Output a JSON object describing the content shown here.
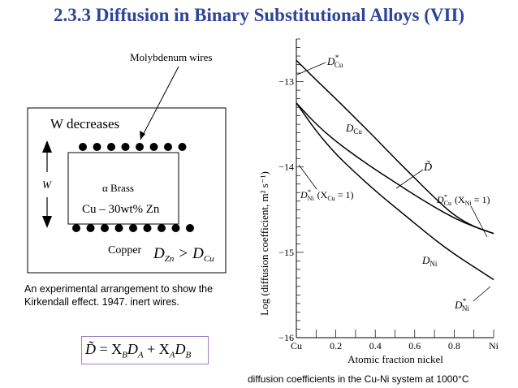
{
  "title": "2.3.3 Diffusion in Binary Substitutional Alloys (VII)",
  "diagram": {
    "wires_label": "Molybdenum wires",
    "w_decreases": "W decreases",
    "w_symbol": "W",
    "alpha_brass": "α Brass",
    "composition": "Cu – 30wt% Zn",
    "copper": "Copper",
    "inequality": {
      "lhs_base": "D",
      "lhs_sub": "Zn",
      "op": ">",
      "rhs_base": "D",
      "rhs_sub": "Cu"
    }
  },
  "caption": "An experimental arrangement to show the Kirkendall effect. 1947. inert wires.",
  "formula": {
    "lhs": "D̃",
    "eq": "=",
    "t1_x": "X",
    "t1_xsub": "B",
    "t1_d": "D",
    "t1_dsub": "A",
    "plus": "+",
    "t2_x": "X",
    "t2_xsub": "A",
    "t2_d": "D",
    "t2_dsub": "B"
  },
  "bottom_caption": "diffusion coefficients in the Cu-Ni system at 1000°C",
  "chart_data": {
    "type": "line",
    "xlabel": "Atomic fraction nickel",
    "ylabel": "Log (diffusion coefficient, m² s⁻¹)",
    "xlim": [
      0,
      1
    ],
    "ylim": [
      -16,
      -12.5
    ],
    "x_ticks": [
      0,
      0.2,
      0.4,
      0.6,
      0.8,
      1.0
    ],
    "x_tick_labels": [
      "Cu",
      "0.2",
      "0.4",
      "0.6",
      "0.8",
      "Ni"
    ],
    "y_ticks": [
      -16,
      -15,
      -14,
      -13
    ],
    "y_tick_labels": [
      "−16",
      "−15",
      "−14",
      "−13"
    ],
    "series": [
      {
        "name": "D*Cu",
        "x": [
          0,
          0.1,
          0.2,
          0.3,
          0.4,
          0.5,
          0.6,
          0.7,
          0.8,
          0.9,
          1.0
        ],
        "y": [
          -12.75,
          -12.98,
          -13.2,
          -13.43,
          -13.66,
          -13.9,
          -14.13,
          -14.36,
          -14.57,
          -14.7,
          -14.78
        ]
      },
      {
        "name": "D̃",
        "x": [
          0,
          0.1,
          0.2,
          0.3,
          0.4,
          0.5,
          0.6,
          0.7,
          0.8,
          0.9,
          1.0
        ],
        "y": [
          -13.25,
          -13.5,
          -13.7,
          -13.87,
          -14.03,
          -14.18,
          -14.33,
          -14.47,
          -14.6,
          -14.7,
          -14.78
        ]
      },
      {
        "name": "D*Ni",
        "x": [
          0,
          0.1,
          0.2,
          0.3,
          0.4,
          0.5,
          0.6,
          0.7,
          0.8,
          0.9,
          1.0
        ],
        "y": [
          -13.25,
          -13.58,
          -13.85,
          -14.07,
          -14.28,
          -14.47,
          -14.66,
          -14.85,
          -15.02,
          -15.17,
          -15.32
        ]
      }
    ],
    "annotations": {
      "dcu_star": {
        "base": "D",
        "sup": "*",
        "sub": "Cu"
      },
      "dcu": {
        "base": "D",
        "sub": "Cu"
      },
      "dtilde": "D̃",
      "dni_star_left": {
        "base": "D",
        "sup": "*",
        "sub": "Ni",
        "cond": "(X",
        "cond_sub": "Cu",
        "cond_end": " = 1)"
      },
      "dcu_star_right": {
        "base": "D",
        "sup": "*",
        "sub": "Cu",
        "cond": "(X",
        "cond_sub": "Ni",
        "cond_end": " = 1)"
      },
      "dni": {
        "base": "D",
        "sub": "Ni"
      },
      "dni_star": {
        "base": "D",
        "sup": "*",
        "sub": "Ni"
      }
    }
  }
}
